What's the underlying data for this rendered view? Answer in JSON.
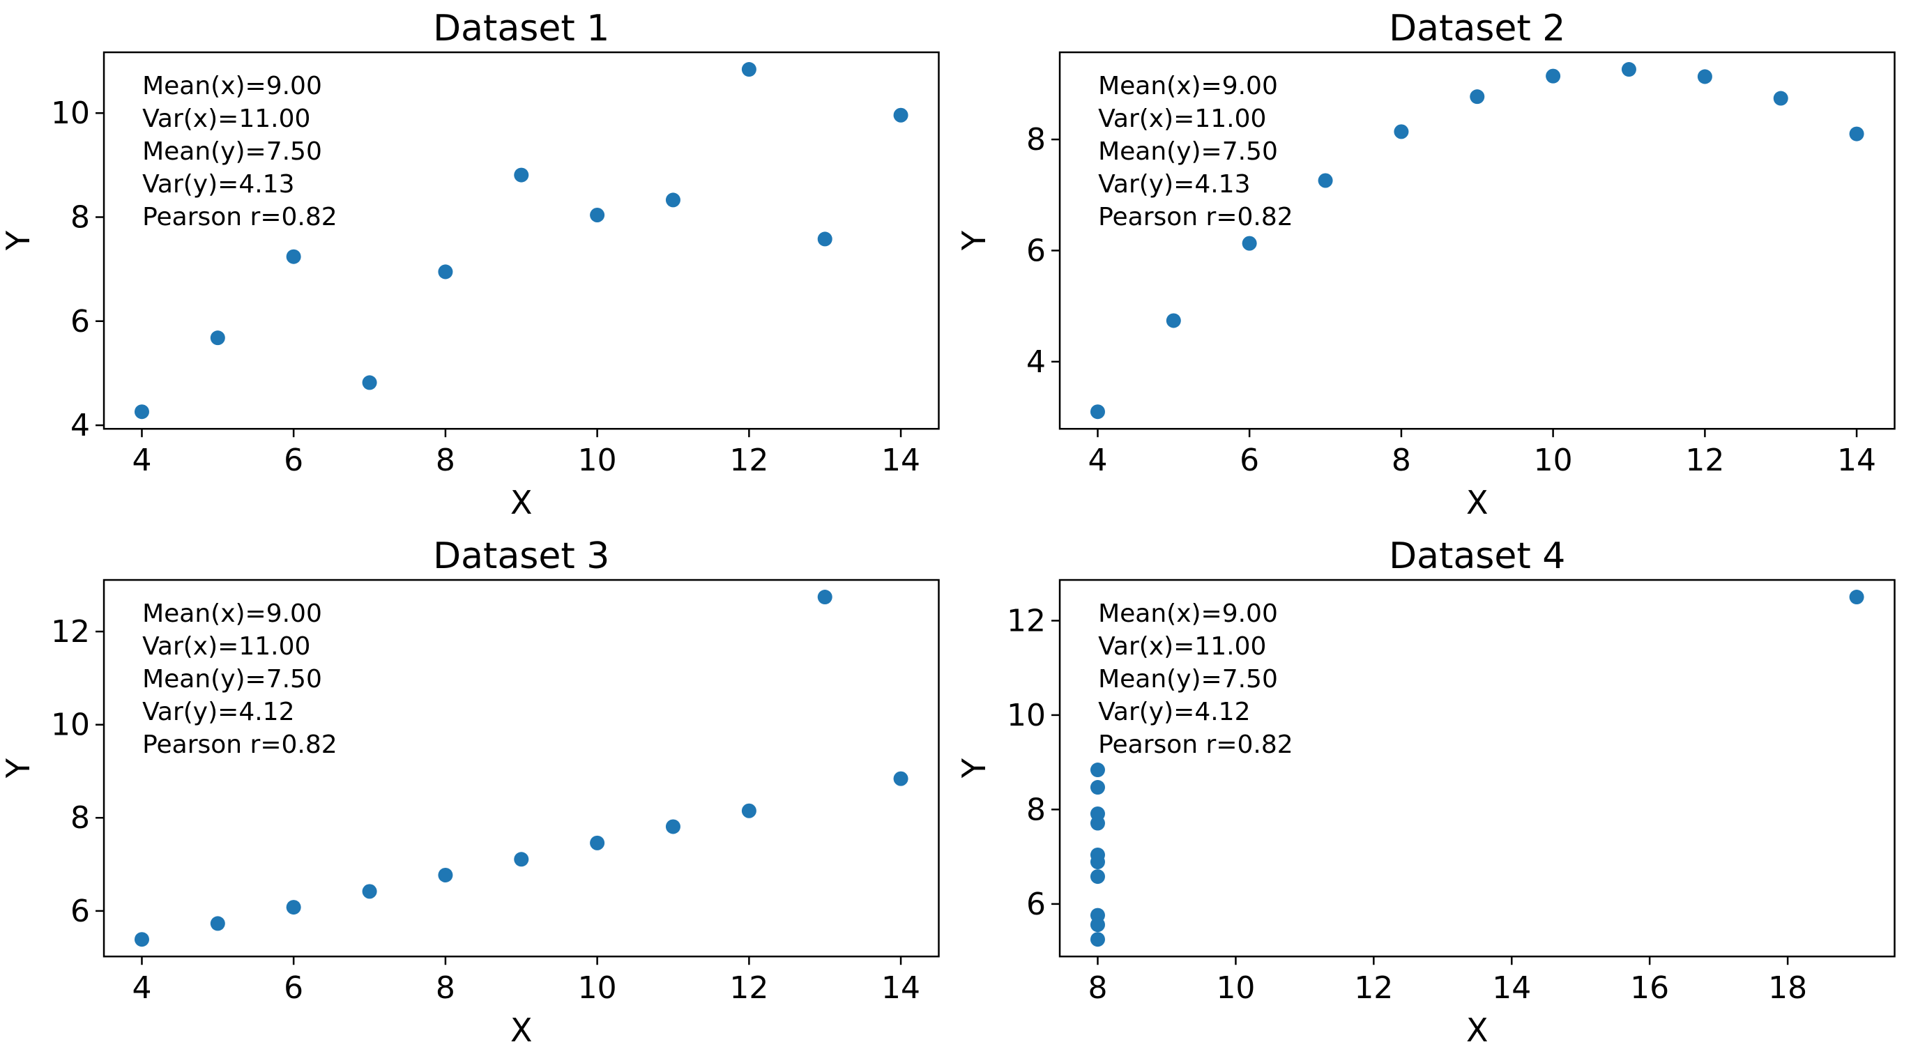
{
  "figure": {
    "background_color": "#ffffff",
    "marker_color": "#1f77b4",
    "text_color": "#000000",
    "grid": false,
    "legend": "none"
  },
  "chart_data": [
    {
      "type": "scatter",
      "title": "Dataset 1",
      "xlabel": "X",
      "ylabel": "Y",
      "x": [
        10,
        8,
        13,
        9,
        11,
        14,
        6,
        4,
        12,
        7,
        5
      ],
      "y": [
        8.04,
        6.95,
        7.58,
        8.81,
        8.33,
        9.96,
        7.24,
        4.26,
        10.84,
        4.82,
        5.68
      ],
      "xlim": [
        3.5,
        14.5
      ],
      "ylim": [
        3.931,
        11.169
      ],
      "xticks": [
        4,
        6,
        8,
        10,
        12,
        14
      ],
      "yticks": [
        4,
        6,
        8,
        10
      ],
      "stats": {
        "mean_x": "9.00",
        "var_x": "11.00",
        "mean_y": "7.50",
        "var_y": "4.13",
        "pearson_r": "0.82"
      },
      "stats_lines": [
        "Mean(x)=9.00",
        "Var(x)=11.00",
        "Mean(y)=7.50",
        "Var(y)=4.13",
        "Pearson r=0.82"
      ]
    },
    {
      "type": "scatter",
      "title": "Dataset 2",
      "xlabel": "X",
      "ylabel": "Y",
      "x": [
        10,
        8,
        13,
        9,
        11,
        14,
        6,
        4,
        12,
        7,
        5
      ],
      "y": [
        9.14,
        8.14,
        8.74,
        8.77,
        9.26,
        8.1,
        6.13,
        3.1,
        9.13,
        7.26,
        4.74
      ],
      "xlim": [
        3.5,
        14.5
      ],
      "ylim": [
        2.792,
        9.568
      ],
      "xticks": [
        4,
        6,
        8,
        10,
        12,
        14
      ],
      "yticks": [
        4,
        6,
        8
      ],
      "stats": {
        "mean_x": "9.00",
        "var_x": "11.00",
        "mean_y": "7.50",
        "var_y": "4.13",
        "pearson_r": "0.82"
      },
      "stats_lines": [
        "Mean(x)=9.00",
        "Var(x)=11.00",
        "Mean(y)=7.50",
        "Var(y)=4.13",
        "Pearson r=0.82"
      ]
    },
    {
      "type": "scatter",
      "title": "Dataset 3",
      "xlabel": "X",
      "ylabel": "Y",
      "x": [
        10,
        8,
        13,
        9,
        11,
        14,
        6,
        4,
        12,
        7,
        5
      ],
      "y": [
        7.46,
        6.77,
        12.74,
        7.11,
        7.81,
        8.84,
        6.08,
        5.39,
        8.15,
        6.42,
        5.73
      ],
      "xlim": [
        3.5,
        14.5
      ],
      "ylim": [
        5.0225,
        13.1075
      ],
      "xticks": [
        4,
        6,
        8,
        10,
        12,
        14
      ],
      "yticks": [
        6,
        8,
        10,
        12
      ],
      "stats": {
        "mean_x": "9.00",
        "var_x": "11.00",
        "mean_y": "7.50",
        "var_y": "4.12",
        "pearson_r": "0.82"
      },
      "stats_lines": [
        "Mean(x)=9.00",
        "Var(x)=11.00",
        "Mean(y)=7.50",
        "Var(y)=4.12",
        "Pearson r=0.82"
      ]
    },
    {
      "type": "scatter",
      "title": "Dataset 4",
      "xlabel": "X",
      "ylabel": "Y",
      "x": [
        8,
        8,
        8,
        8,
        8,
        8,
        8,
        19,
        8,
        8,
        8
      ],
      "y": [
        6.58,
        5.76,
        7.71,
        8.84,
        8.47,
        7.04,
        5.25,
        12.5,
        5.56,
        7.91,
        6.89
      ],
      "xlim": [
        7.45,
        19.55
      ],
      "ylim": [
        4.8875,
        12.8625
      ],
      "xticks": [
        8,
        10,
        12,
        14,
        16,
        18
      ],
      "yticks": [
        6,
        8,
        10,
        12
      ],
      "stats": {
        "mean_x": "9.00",
        "var_x": "11.00",
        "mean_y": "7.50",
        "var_y": "4.12",
        "pearson_r": "0.82"
      },
      "stats_lines": [
        "Mean(x)=9.00",
        "Var(x)=11.00",
        "Mean(y)=7.50",
        "Var(y)=4.12",
        "Pearson r=0.82"
      ]
    }
  ]
}
